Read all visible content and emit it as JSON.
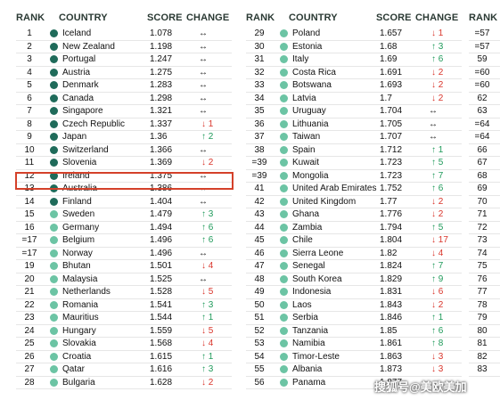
{
  "headers": {
    "rank": "RANK",
    "country": "COUNTRY",
    "score": "SCORE",
    "change": "CHANGE"
  },
  "colors": {
    "dark_dot": "#1f6b5a",
    "light_dot": "#6cc4a4",
    "up": "#1f9a5a",
    "down": "#d9352b",
    "highlight": "#d4412a"
  },
  "left_table": [
    {
      "rank": "1",
      "country": "Iceland",
      "score": "1.078",
      "change": "↔",
      "dir": "same",
      "dot": "dark"
    },
    {
      "rank": "2",
      "country": "New Zealand",
      "score": "1.198",
      "change": "↔",
      "dir": "same",
      "dot": "dark"
    },
    {
      "rank": "3",
      "country": "Portugal",
      "score": "1.247",
      "change": "↔",
      "dir": "same",
      "dot": "dark"
    },
    {
      "rank": "4",
      "country": "Austria",
      "score": "1.275",
      "change": "↔",
      "dir": "same",
      "dot": "dark"
    },
    {
      "rank": "5",
      "country": "Denmark",
      "score": "1.283",
      "change": "↔",
      "dir": "same",
      "dot": "dark"
    },
    {
      "rank": "6",
      "country": "Canada",
      "score": "1.298",
      "change": "↔",
      "dir": "same",
      "dot": "dark"
    },
    {
      "rank": "7",
      "country": "Singapore",
      "score": "1.321",
      "change": "↔",
      "dir": "same",
      "dot": "dark"
    },
    {
      "rank": "8",
      "country": "Czech Republic",
      "score": "1.337",
      "change": "↓ 1",
      "dir": "down",
      "dot": "dark"
    },
    {
      "rank": "9",
      "country": "Japan",
      "score": "1.36",
      "change": "↑ 2",
      "dir": "up",
      "dot": "dark"
    },
    {
      "rank": "10",
      "country": "Switzerland",
      "score": "1.366",
      "change": "↔",
      "dir": "same",
      "dot": "dark"
    },
    {
      "rank": "11",
      "country": "Slovenia",
      "score": "1.369",
      "change": "↓ 2",
      "dir": "down",
      "dot": "dark"
    },
    {
      "rank": "12",
      "country": "Ireland",
      "score": "1.375",
      "change": "↔",
      "dir": "same",
      "dot": "dark"
    },
    {
      "rank": "13",
      "country": "Australia",
      "score": "1.386",
      "change": "↔",
      "dir": "same",
      "dot": "dark"
    },
    {
      "rank": "14",
      "country": "Finland",
      "score": "1.404",
      "change": "↔",
      "dir": "same",
      "dot": "dark"
    },
    {
      "rank": "15",
      "country": "Sweden",
      "score": "1.479",
      "change": "↑ 3",
      "dir": "up",
      "dot": "light"
    },
    {
      "rank": "16",
      "country": "Germany",
      "score": "1.494",
      "change": "↑ 6",
      "dir": "up",
      "dot": "light"
    },
    {
      "rank": "=17",
      "country": "Belgium",
      "score": "1.496",
      "change": "↑ 6",
      "dir": "up",
      "dot": "light"
    },
    {
      "rank": "=17",
      "country": "Norway",
      "score": "1.496",
      "change": "↔",
      "dir": "same",
      "dot": "light"
    },
    {
      "rank": "19",
      "country": "Bhutan",
      "score": "1.501",
      "change": "↓ 4",
      "dir": "down",
      "dot": "light"
    },
    {
      "rank": "20",
      "country": "Malaysia",
      "score": "1.525",
      "change": "↔",
      "dir": "same",
      "dot": "light"
    },
    {
      "rank": "21",
      "country": "Netherlands",
      "score": "1.528",
      "change": "↓ 5",
      "dir": "down",
      "dot": "light"
    },
    {
      "rank": "22",
      "country": "Romania",
      "score": "1.541",
      "change": "↑ 3",
      "dir": "up",
      "dot": "light"
    },
    {
      "rank": "23",
      "country": "Mauritius",
      "score": "1.544",
      "change": "↑ 1",
      "dir": "up",
      "dot": "light"
    },
    {
      "rank": "24",
      "country": "Hungary",
      "score": "1.559",
      "change": "↓ 5",
      "dir": "down",
      "dot": "light"
    },
    {
      "rank": "25",
      "country": "Slovakia",
      "score": "1.568",
      "change": "↓ 4",
      "dir": "down",
      "dot": "light"
    },
    {
      "rank": "26",
      "country": "Croatia",
      "score": "1.615",
      "change": "↑ 1",
      "dir": "up",
      "dot": "light"
    },
    {
      "rank": "27",
      "country": "Qatar",
      "score": "1.616",
      "change": "↑ 3",
      "dir": "up",
      "dot": "light"
    },
    {
      "rank": "28",
      "country": "Bulgaria",
      "score": "1.628",
      "change": "↓ 2",
      "dir": "down",
      "dot": "light"
    }
  ],
  "right_table": [
    {
      "rank": "29",
      "country": "Poland",
      "score": "1.657",
      "change": "↓ 1",
      "dir": "down",
      "dot": "light"
    },
    {
      "rank": "30",
      "country": "Estonia",
      "score": "1.68",
      "change": "↑ 3",
      "dir": "up",
      "dot": "light"
    },
    {
      "rank": "31",
      "country": "Italy",
      "score": "1.69",
      "change": "↑ 6",
      "dir": "up",
      "dot": "light"
    },
    {
      "rank": "32",
      "country": "Costa Rica",
      "score": "1.691",
      "change": "↓ 2",
      "dir": "down",
      "dot": "light"
    },
    {
      "rank": "33",
      "country": "Botswana",
      "score": "1.693",
      "change": "↓ 2",
      "dir": "down",
      "dot": "light"
    },
    {
      "rank": "34",
      "country": "Latvia",
      "score": "1.7",
      "change": "↓ 2",
      "dir": "down",
      "dot": "light"
    },
    {
      "rank": "35",
      "country": "Uruguay",
      "score": "1.704",
      "change": "↔",
      "dir": "same",
      "dot": "light"
    },
    {
      "rank": "36",
      "country": "Lithuania",
      "score": "1.705",
      "change": "↔",
      "dir": "same",
      "dot": "light"
    },
    {
      "rank": "37",
      "country": "Taiwan",
      "score": "1.707",
      "change": "↔",
      "dir": "same",
      "dot": "light"
    },
    {
      "rank": "38",
      "country": "Spain",
      "score": "1.712",
      "change": "↑ 1",
      "dir": "up",
      "dot": "light"
    },
    {
      "rank": "=39",
      "country": "Kuwait",
      "score": "1.723",
      "change": "↑ 5",
      "dir": "up",
      "dot": "light"
    },
    {
      "rank": "=39",
      "country": "Mongolia",
      "score": "1.723",
      "change": "↑ 7",
      "dir": "up",
      "dot": "light"
    },
    {
      "rank": "41",
      "country": "United Arab Emirates",
      "score": "1.752",
      "change": "↑ 6",
      "dir": "up",
      "dot": "light"
    },
    {
      "rank": "42",
      "country": "United Kingdom",
      "score": "1.77",
      "change": "↓ 2",
      "dir": "down",
      "dot": "light"
    },
    {
      "rank": "43",
      "country": "Ghana",
      "score": "1.776",
      "change": "↓ 2",
      "dir": "down",
      "dot": "light"
    },
    {
      "rank": "44",
      "country": "Zambia",
      "score": "1.794",
      "change": "↑ 5",
      "dir": "up",
      "dot": "light"
    },
    {
      "rank": "45",
      "country": "Chile",
      "score": "1.804",
      "change": "↓ 17",
      "dir": "down",
      "dot": "light"
    },
    {
      "rank": "46",
      "country": "Sierra Leone",
      "score": "1.82",
      "change": "↓ 4",
      "dir": "down",
      "dot": "light"
    },
    {
      "rank": "47",
      "country": "Senegal",
      "score": "1.824",
      "change": "↑ 7",
      "dir": "up",
      "dot": "light"
    },
    {
      "rank": "48",
      "country": "South Korea",
      "score": "1.829",
      "change": "↑ 9",
      "dir": "up",
      "dot": "light"
    },
    {
      "rank": "49",
      "country": "Indonesia",
      "score": "1.831",
      "change": "↓ 6",
      "dir": "down",
      "dot": "light"
    },
    {
      "rank": "50",
      "country": "Laos",
      "score": "1.843",
      "change": "↓ 2",
      "dir": "down",
      "dot": "light"
    },
    {
      "rank": "51",
      "country": "Serbia",
      "score": "1.846",
      "change": "↑ 1",
      "dir": "up",
      "dot": "light"
    },
    {
      "rank": "52",
      "country": "Tanzania",
      "score": "1.85",
      "change": "↑ 6",
      "dir": "up",
      "dot": "light"
    },
    {
      "rank": "53",
      "country": "Namibia",
      "score": "1.861",
      "change": "↑ 8",
      "dir": "up",
      "dot": "light"
    },
    {
      "rank": "54",
      "country": "Timor-Leste",
      "score": "1.863",
      "change": "↓ 3",
      "dir": "down",
      "dot": "light"
    },
    {
      "rank": "55",
      "country": "Albania",
      "score": "1.873",
      "change": "↓ 3",
      "dir": "down",
      "dot": "light"
    },
    {
      "rank": "56",
      "country": "Panama",
      "score": "1.877",
      "change": "",
      "dir": "same",
      "dot": "light"
    }
  ],
  "partial_ranks": [
    "=57",
    "=57",
    "59",
    "=60",
    "=60",
    "62",
    "63",
    "=64",
    "=64",
    "66",
    "67",
    "68",
    "69",
    "70",
    "71",
    "72",
    "73",
    "74",
    "75",
    "76",
    "77",
    "78",
    "79",
    "80",
    "81",
    "82",
    "83"
  ],
  "watermark": "搜狐号@美欧美加"
}
